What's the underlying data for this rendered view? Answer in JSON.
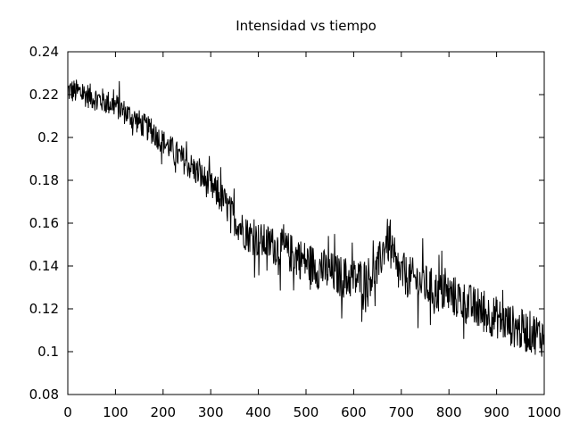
{
  "chart_data": {
    "type": "line",
    "title": "Intensidad vs tiempo",
    "xlabel": "",
    "ylabel": "",
    "xlim": [
      0,
      1000
    ],
    "ylim": [
      0.08,
      0.24
    ],
    "x_ticks": [
      0,
      100,
      200,
      300,
      400,
      500,
      600,
      700,
      800,
      900,
      1000
    ],
    "y_ticks": [
      0.08,
      0.1,
      0.12,
      0.14,
      0.16,
      0.18,
      0.2,
      0.22,
      0.24
    ],
    "x_tick_labels": [
      "0",
      "100",
      "200",
      "300",
      "400",
      "500",
      "600",
      "700",
      "800",
      "900",
      "1000"
    ],
    "y_tick_labels": [
      "0.08",
      "0.1",
      "0.12",
      "0.14",
      "0.16",
      "0.18",
      "0.2",
      "0.22",
      "0.24"
    ],
    "grid": false,
    "legend": "none",
    "line_color": "#000000",
    "series": [
      {
        "x": [
          0,
          25,
          50,
          75,
          100,
          125,
          150,
          175,
          200,
          225,
          250,
          275,
          300,
          325,
          350,
          375,
          400,
          425,
          450,
          475,
          500,
          525,
          550,
          575,
          600,
          625,
          650,
          660,
          670,
          680,
          690,
          700,
          725,
          750,
          775,
          800,
          825,
          850,
          875,
          900,
          925,
          950,
          975,
          1000
        ],
        "values": [
          0.222,
          0.221,
          0.219,
          0.217,
          0.215,
          0.211,
          0.207,
          0.203,
          0.198,
          0.193,
          0.188,
          0.183,
          0.177,
          0.171,
          0.162,
          0.155,
          0.152,
          0.15,
          0.148,
          0.145,
          0.142,
          0.139,
          0.137,
          0.135,
          0.134,
          0.134,
          0.138,
          0.146,
          0.153,
          0.145,
          0.138,
          0.136,
          0.134,
          0.131,
          0.128,
          0.127,
          0.124,
          0.121,
          0.118,
          0.116,
          0.113,
          0.11,
          0.109,
          0.107
        ]
      }
    ]
  }
}
